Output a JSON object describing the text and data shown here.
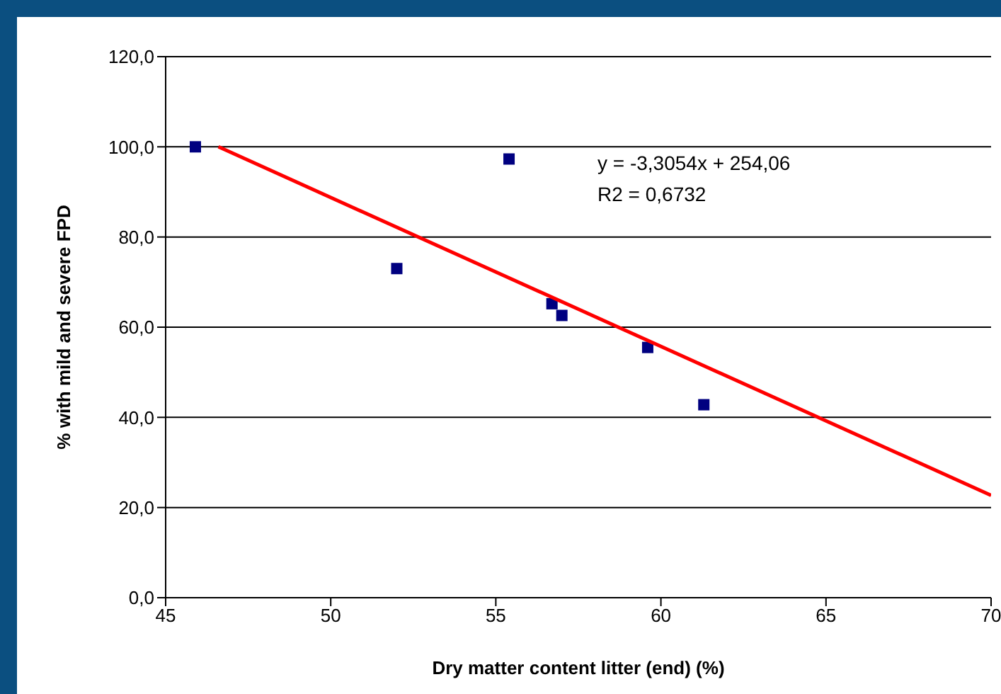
{
  "chart_data": {
    "type": "scatter",
    "xlabel": "Dry matter content litter (end) (%)",
    "ylabel": "% with mild and severe FPD",
    "xlim": [
      45,
      70
    ],
    "xticks": [
      45,
      50,
      55,
      60,
      65,
      70
    ],
    "ylim": [
      0,
      120
    ],
    "yticks": [
      {
        "value": 0,
        "label": "0,0"
      },
      {
        "value": 20,
        "label": "20,0"
      },
      {
        "value": 40,
        "label": "40,0"
      },
      {
        "value": 60,
        "label": "60,0"
      },
      {
        "value": 80,
        "label": "80,0"
      },
      {
        "value": 100,
        "label": "100,0"
      },
      {
        "value": 120,
        "label": "120,0"
      }
    ],
    "grid": "y",
    "marker": "square",
    "series": [
      {
        "type": "scatter",
        "color": "#000080",
        "x": [
          45.9,
          52.0,
          55.4,
          56.7,
          57.0,
          59.6,
          61.3
        ],
        "values": [
          100,
          73,
          97.3,
          65.2,
          62.6,
          55.5,
          42.8
        ]
      },
      {
        "type": "line",
        "color": "#ff0000",
        "marker": "none",
        "x": [
          46.6,
          70
        ],
        "values": [
          100.0,
          22.7
        ]
      }
    ],
    "annotations": [
      "y = -3,3054x + 254,06",
      "R2 = 0,6732"
    ]
  }
}
